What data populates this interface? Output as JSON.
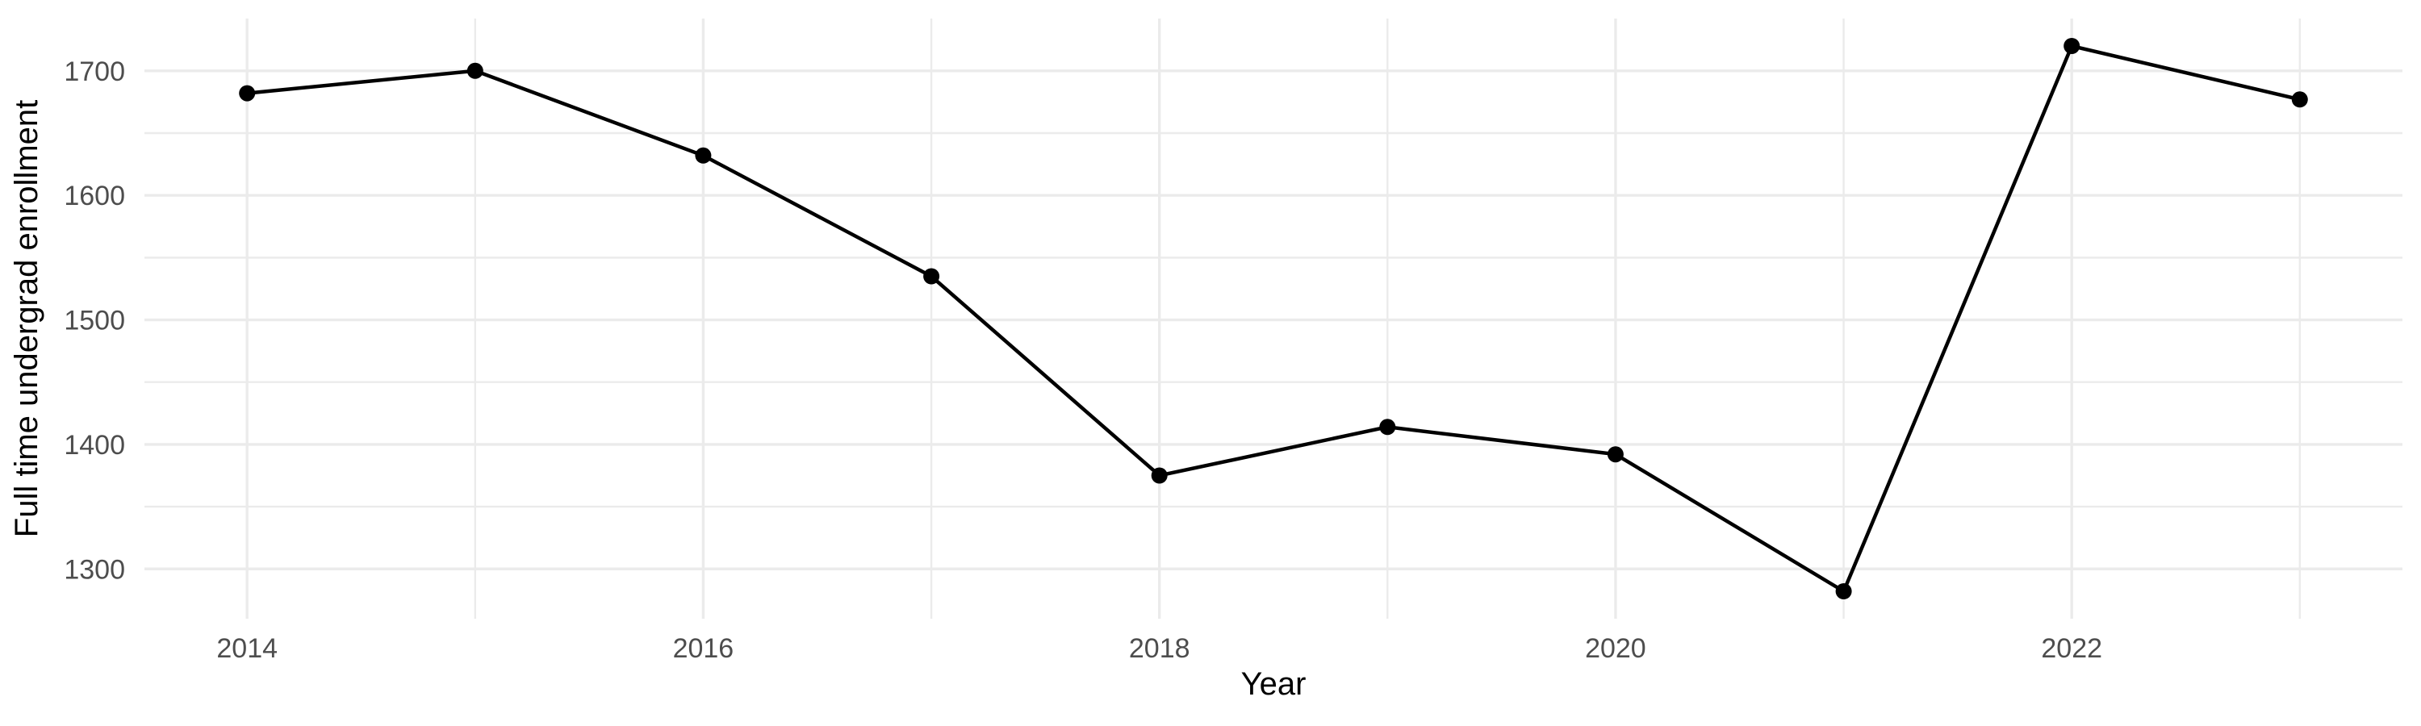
{
  "figure": {
    "background": "#FFFFFF"
  },
  "chart_data": {
    "type": "line",
    "xlabel": "Year",
    "ylabel": "Full time undergrad enrollment",
    "x": [
      2014,
      2015,
      2016,
      2017,
      2018,
      2019,
      2020,
      2021,
      2022,
      2023
    ],
    "values": [
      1682,
      1700,
      1632,
      1535,
      1375,
      1414,
      1392,
      1282,
      1720,
      1677
    ],
    "x_major_ticks": [
      2014,
      2016,
      2018,
      2020,
      2022
    ],
    "x_minor_ticks": [
      2015,
      2017,
      2019,
      2021,
      2023
    ],
    "y_major_ticks": [
      1300,
      1400,
      1500,
      1600,
      1700
    ],
    "y_minor_ticks": [
      1350,
      1450,
      1550,
      1650
    ],
    "xlim": [
      2013.55,
      2023.45
    ],
    "ylim": [
      1260,
      1742
    ],
    "grid": "major+minor",
    "legend": "none",
    "marker": "filled-circle",
    "style": {
      "line_color": "#000000",
      "point_color": "#000000",
      "grid_color": "#EBEBEB",
      "tick_label_color": "#4D4D4D",
      "axis_title_color": "#000000",
      "background": "#FFFFFF"
    }
  }
}
